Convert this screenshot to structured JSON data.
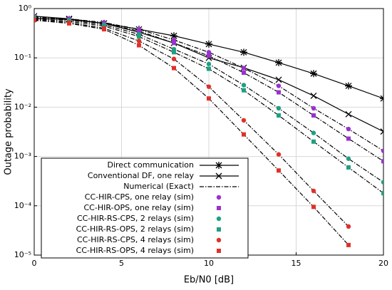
{
  "chart_data": {
    "type": "line",
    "xlabel": "Eb/N0 [dB]",
    "ylabel": "Outage probability",
    "x": [
      0,
      2,
      4,
      6,
      8,
      10,
      12,
      14,
      16,
      18,
      20
    ],
    "xlim": [
      0,
      20
    ],
    "xticks": [
      0,
      5,
      10,
      15,
      20
    ],
    "ylim": [
      1e-05,
      1
    ],
    "yscale": "log",
    "yticks": [
      {
        "value": 1e-05,
        "label": "10⁻⁵"
      },
      {
        "value": 0.0001,
        "label": "10⁻⁴"
      },
      {
        "value": 0.001,
        "label": "10⁻³"
      },
      {
        "value": 0.01,
        "label": "10⁻²"
      },
      {
        "value": 0.1,
        "label": "10⁻¹"
      },
      {
        "value": 1,
        "label": "10⁰"
      }
    ],
    "grid": true,
    "legend": "lower left",
    "series": [
      {
        "name": "Direct communication",
        "color": "#000000",
        "line": "solid",
        "marker": "asterisk",
        "values": [
          0.63,
          0.6,
          0.5,
          0.38,
          0.28,
          0.19,
          0.13,
          0.08,
          0.048,
          0.027,
          0.015
        ]
      },
      {
        "name": "Conventional DF, one relay",
        "color": "#000000",
        "line": "solid",
        "marker": "x",
        "values": [
          0.7,
          0.62,
          0.5,
          0.33,
          0.2,
          0.1,
          0.063,
          0.036,
          0.017,
          0.0072,
          0.0032
        ]
      },
      {
        "name": "Numerical (Exact)",
        "color": "#000000",
        "line": "dashdot",
        "marker": "none"
      },
      {
        "name": "CC-HIR-CPS, one relay (sim)",
        "color": "#9b30d0",
        "line": "none",
        "marker": "circle",
        "values": [
          0.68,
          0.62,
          0.52,
          0.38,
          0.23,
          0.13,
          0.062,
          0.027,
          0.0095,
          0.0036,
          0.0013
        ]
      },
      {
        "name": "CC-HIR-OPS, one relay (sim)",
        "color": "#9b30d0",
        "line": "none",
        "marker": "square",
        "values": [
          0.65,
          0.6,
          0.5,
          0.35,
          0.2,
          0.11,
          0.05,
          0.02,
          0.0068,
          0.0023,
          0.0008
        ]
      },
      {
        "name": "CC-HIR-RS-CPS, 2 relays (sim)",
        "color": "#1fa080",
        "line": "none",
        "marker": "circle",
        "values": [
          0.65,
          0.58,
          0.47,
          0.3,
          0.15,
          0.075,
          0.028,
          0.0095,
          0.003,
          0.0009,
          0.0003
        ]
      },
      {
        "name": "CC-HIR-RS-OPS, 2 relays (sim)",
        "color": "#1fa080",
        "line": "none",
        "marker": "square",
        "values": [
          0.62,
          0.55,
          0.44,
          0.27,
          0.13,
          0.06,
          0.022,
          0.0068,
          0.002,
          0.0006,
          0.00018
        ]
      },
      {
        "name": "CC-HIR-RS-CPS, 4 relays (sim)",
        "color": "#e0302a",
        "line": "none",
        "marker": "circle",
        "values": [
          0.6,
          0.52,
          0.4,
          0.22,
          0.095,
          0.026,
          0.0054,
          0.0011,
          0.0002,
          3.8e-05,
          null
        ]
      },
      {
        "name": "CC-HIR-RS-OPS, 4 relays (sim)",
        "color": "#e0302a",
        "line": "none",
        "marker": "square",
        "values": [
          0.58,
          0.5,
          0.38,
          0.18,
          0.062,
          0.015,
          0.0028,
          0.00052,
          9.5e-05,
          1.6e-05,
          null
        ]
      }
    ]
  }
}
